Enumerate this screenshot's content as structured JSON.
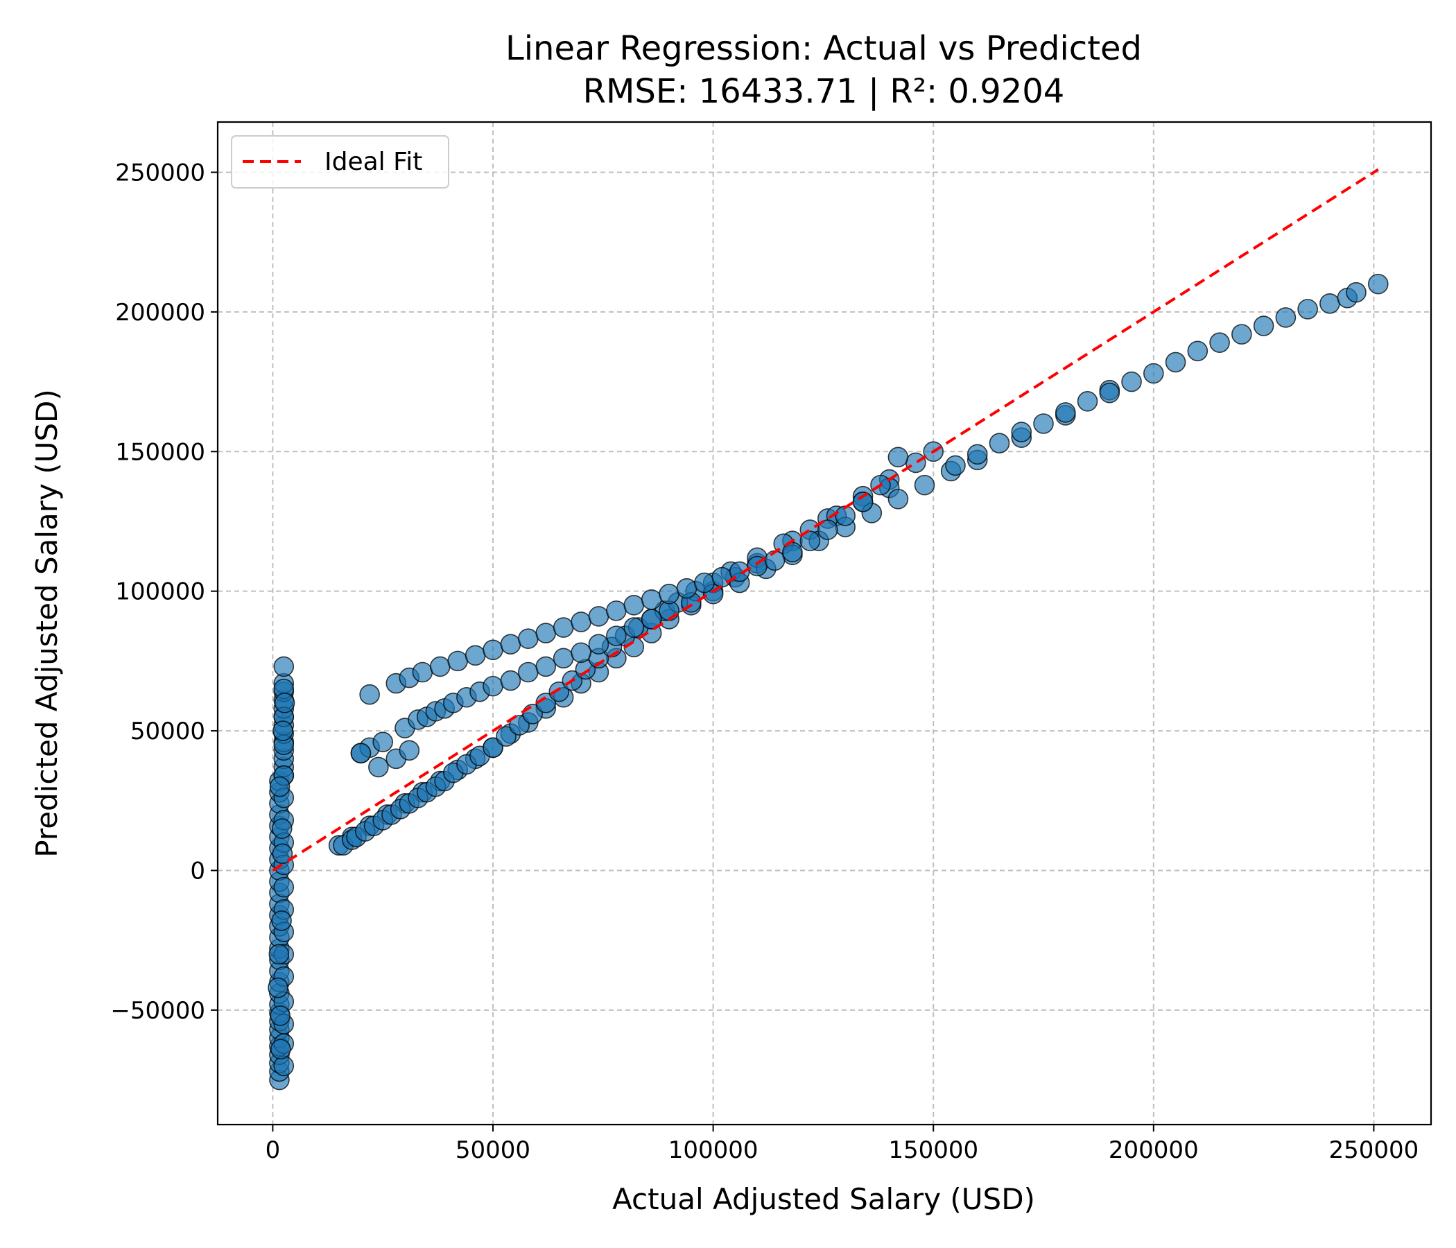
{
  "chart_data": {
    "type": "scatter",
    "title": "Linear Regression: Actual vs Predicted",
    "subtitle": "RMSE: 16433.71 | R²: 0.9204",
    "xlabel": "Actual Adjusted Salary (USD)",
    "ylabel": "Predicted Adjusted Salary (USD)",
    "xlim": [
      -12500,
      263000
    ],
    "ylim": [
      -91000,
      268000
    ],
    "xticks": [
      0,
      50000,
      100000,
      150000,
      200000,
      250000
    ],
    "yticks": [
      -50000,
      0,
      50000,
      100000,
      150000,
      200000,
      250000
    ],
    "xtick_labels": [
      "0",
      "50000",
      "100000",
      "150000",
      "200000",
      "250000"
    ],
    "ytick_labels": [
      "−50000",
      "0",
      "50000",
      "100000",
      "150000",
      "200000",
      "250000"
    ],
    "grid": true,
    "legend": {
      "position": "top-left",
      "entries": [
        "Ideal Fit"
      ]
    },
    "ideal_fit": {
      "name": "Ideal Fit",
      "color": "#ff0000",
      "style": "dashed",
      "x": [
        0,
        251000
      ],
      "y": [
        0,
        251000
      ]
    },
    "series": [
      {
        "color": "#1f77b4",
        "x": [
          1500,
          1500,
          1500,
          1500,
          1500,
          1500,
          1500,
          1500,
          1500,
          1500,
          1500,
          1500,
          1500,
          1500,
          1500,
          1500,
          1500,
          1500,
          1500,
          1500,
          1500,
          1500,
          1500,
          1500,
          1500,
          1500,
          1500,
          1500,
          1500,
          1500,
          2500,
          2500,
          2500,
          2500,
          2500,
          2500,
          2500,
          2500,
          2500,
          2500,
          2500,
          2500,
          2500,
          2500,
          2500,
          2500,
          2500,
          2500,
          2500,
          2500,
          2500,
          2500,
          2500,
          2500,
          2500,
          2500,
          2500,
          2500,
          2500,
          2500,
          1800,
          1200,
          2000,
          2200,
          1600,
          2300,
          1400,
          2700,
          2100,
          1700,
          15000,
          18000,
          22000,
          26000,
          30000,
          34000,
          38000,
          42000,
          46000,
          50000,
          54000,
          58000,
          62000,
          66000,
          70000,
          74000,
          78000,
          82000,
          86000,
          90000,
          95000,
          100000,
          105000,
          110000,
          118000,
          126000,
          134000,
          140000,
          146000,
          150000,
          16000,
          18000,
          19000,
          21000,
          23000,
          25000,
          27000,
          29000,
          31000,
          33000,
          35000,
          37000,
          39000,
          41000,
          44000,
          47000,
          50000,
          53000,
          56000,
          59000,
          62000,
          65000,
          68000,
          71000,
          74000,
          77000,
          80000,
          83000,
          86000,
          89000,
          92000,
          96000,
          100000,
          104000,
          110000,
          116000,
          122000,
          128000,
          134000,
          140000,
          20000,
          22000,
          24000,
          25000,
          28000,
          30000,
          31000,
          33000,
          35000,
          37000,
          39000,
          41000,
          44000,
          47000,
          50000,
          54000,
          58000,
          62000,
          66000,
          70000,
          74000,
          78000,
          82000,
          86000,
          90000,
          95000,
          100000,
          106000,
          112000,
          118000,
          124000,
          130000,
          136000,
          142000,
          148000,
          154000,
          160000,
          170000,
          180000,
          190000,
          22000,
          28000,
          31000,
          34000,
          38000,
          42000,
          46000,
          50000,
          54000,
          58000,
          62000,
          66000,
          70000,
          74000,
          78000,
          82000,
          86000,
          90000,
          94000,
          98000,
          102000,
          106000,
          110000,
          114000,
          118000,
          122000,
          126000,
          130000,
          134000,
          138000,
          142000,
          20000,
          155000,
          160000,
          165000,
          170000,
          175000,
          180000,
          185000,
          190000,
          195000,
          200000,
          205000,
          210000,
          215000,
          220000,
          225000,
          230000,
          235000,
          240000,
          244000,
          246000,
          251000
        ],
        "y": [
          -75000,
          -72000,
          -69000,
          -66000,
          -63000,
          -60000,
          -57000,
          -54000,
          -51000,
          -48000,
          -44000,
          -40000,
          -36000,
          -32000,
          -28000,
          -24000,
          -20000,
          -16000,
          -12000,
          -8000,
          -4000,
          0,
          4000,
          8000,
          12000,
          16000,
          20000,
          24000,
          28000,
          32000,
          34000,
          37000,
          40000,
          43000,
          46000,
          49000,
          52000,
          55000,
          58000,
          61000,
          64000,
          67000,
          73000,
          -70000,
          -62000,
          -55000,
          -47000,
          -38000,
          -30000,
          -22000,
          -14000,
          -6000,
          2000,
          10000,
          18000,
          26000,
          34000,
          45000,
          55000,
          65000,
          -64000,
          -42000,
          -18000,
          6000,
          30000,
          50000,
          -30000,
          60000,
          15000,
          -52000,
          9000,
          12000,
          16000,
          20000,
          24000,
          28000,
          32000,
          36000,
          40000,
          44000,
          49000,
          53000,
          58000,
          62000,
          67000,
          71000,
          76000,
          80000,
          85000,
          90000,
          95000,
          100000,
          105000,
          110000,
          118000,
          126000,
          134000,
          140000,
          146000,
          150000,
          9000,
          11000,
          12000,
          14000,
          16000,
          18000,
          20000,
          22000,
          24000,
          26000,
          28000,
          30000,
          32000,
          35000,
          38000,
          41000,
          44000,
          48000,
          52000,
          56000,
          60000,
          64000,
          68000,
          72000,
          76000,
          80000,
          84000,
          87000,
          90000,
          93000,
          96000,
          100000,
          103000,
          107000,
          112000,
          117000,
          122000,
          127000,
          132000,
          137000,
          42000,
          44000,
          37000,
          46000,
          40000,
          51000,
          43000,
          54000,
          55000,
          57000,
          58000,
          60000,
          62000,
          64000,
          66000,
          68000,
          71000,
          73000,
          76000,
          78000,
          81000,
          84000,
          87000,
          90000,
          93000,
          96000,
          99000,
          103000,
          108000,
          113000,
          118000,
          123000,
          128000,
          133000,
          138000,
          143000,
          147000,
          155000,
          163000,
          172000,
          63000,
          67000,
          69000,
          71000,
          73000,
          75000,
          77000,
          79000,
          81000,
          83000,
          85000,
          87000,
          89000,
          91000,
          93000,
          95000,
          97000,
          99000,
          101000,
          103000,
          105000,
          107000,
          109000,
          111000,
          114000,
          118000,
          122000,
          127000,
          132000,
          138000,
          148000,
          42000,
          145000,
          149000,
          153000,
          157000,
          160000,
          164000,
          168000,
          171000,
          175000,
          178000,
          182000,
          186000,
          189000,
          192000,
          195000,
          198000,
          201000,
          203000,
          205000,
          207000,
          210000
        ]
      }
    ]
  }
}
